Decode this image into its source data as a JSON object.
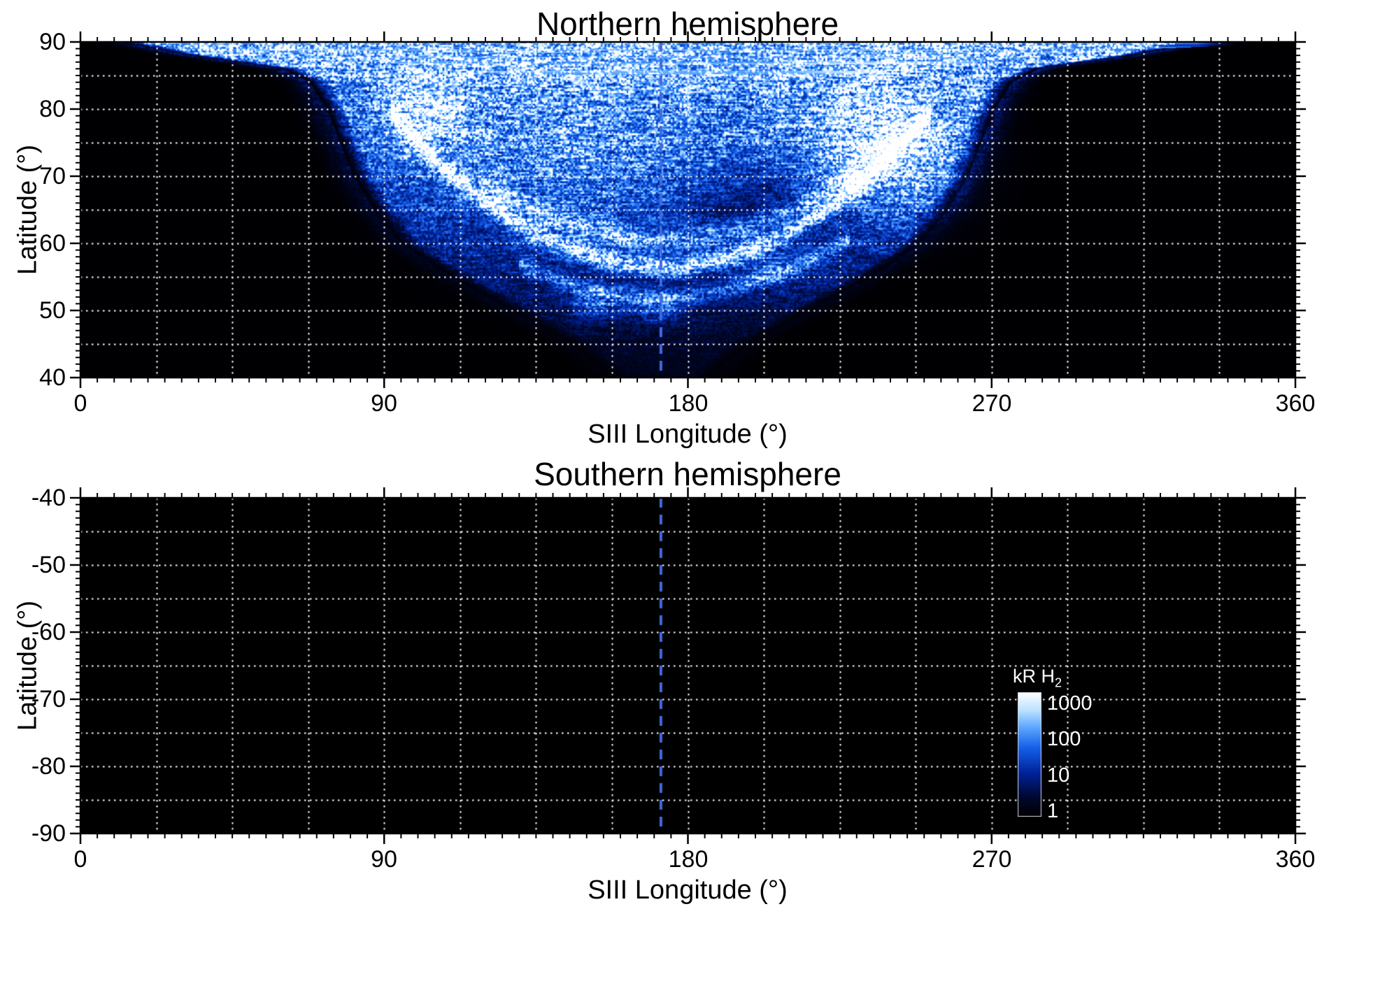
{
  "chart_data": {
    "type": "heatmap",
    "panels": [
      {
        "id": "north",
        "title": "Northern hemisphere",
        "xlabel": "SIII Longitude (°)",
        "ylabel": "Latitude (°)",
        "xlim": [
          0,
          360
        ],
        "ylim": [
          40,
          90
        ],
        "xticks": [
          0,
          90,
          180,
          270,
          360
        ],
        "yticks": [
          90,
          80,
          70,
          60,
          50,
          40
        ],
        "x_minor_step": 5,
        "y_minor_step": 1,
        "grid": {
          "lon_step": 22.5,
          "lat_step": 5,
          "style": "dotted",
          "color": "#ffffff"
        },
        "meridian_line": {
          "lon": 172,
          "style": "dashed",
          "color": "#3f6ae0"
        },
        "background": "#000000",
        "has_emission": true
      },
      {
        "id": "south",
        "title": "Southern hemisphere",
        "xlabel": "SIII Longitude (°)",
        "ylabel": "Latitude (°)",
        "xlim": [
          0,
          360
        ],
        "ylim": [
          -90,
          -40
        ],
        "xticks": [
          0,
          90,
          180,
          270,
          360
        ],
        "yticks": [
          -40,
          -50,
          -60,
          -70,
          -80,
          -90
        ],
        "x_minor_step": 5,
        "y_minor_step": 1,
        "grid": {
          "lon_step": 22.5,
          "lat_step": 5,
          "style": "dotted",
          "color": "#ffffff"
        },
        "meridian_line": {
          "lon": 172,
          "style": "dashed",
          "color": "#3f6ae0"
        },
        "background": "#000000",
        "has_emission": false
      }
    ],
    "colorbar": {
      "label": "kR H",
      "label_sub": "2",
      "ticks": [
        1000,
        100,
        10,
        1
      ],
      "log_range": [
        0.7,
        2000
      ],
      "stops": [
        [
          0.0,
          "#000003"
        ],
        [
          0.15,
          "#00072e"
        ],
        [
          0.35,
          "#00239a"
        ],
        [
          0.55,
          "#155fe8"
        ],
        [
          0.72,
          "#5ea8ff"
        ],
        [
          0.85,
          "#b8e0ff"
        ],
        [
          1.0,
          "#ffffff"
        ]
      ]
    },
    "emission_model": {
      "description": "Northern auroral H2 emission: funnel-shaped region centred near SIII lon 172, bright polar band above lat ~84 spanning lon ~15-335, narrow main oval arcs dipping to lat ~56 near lon 170, bright active region near lon 238 lat 74, speckled faint emission down to lat 40 between lon ~145-200.",
      "center_lon": 172,
      "halfwidth_by_lat": [
        [
          40,
          14
        ],
        [
          45,
          26
        ],
        [
          50,
          44
        ],
        [
          55,
          62
        ],
        [
          60,
          77
        ],
        [
          65,
          85
        ],
        [
          70,
          91
        ],
        [
          75,
          95
        ],
        [
          80,
          99
        ],
        [
          84,
          104
        ],
        [
          86,
          112
        ],
        [
          88,
          140
        ],
        [
          90,
          160
        ]
      ],
      "base_by_lat": [
        [
          40,
          0.1
        ],
        [
          46,
          0.18
        ],
        [
          52,
          0.28
        ],
        [
          58,
          0.38
        ],
        [
          64,
          0.48
        ],
        [
          70,
          0.6
        ],
        [
          76,
          0.72
        ],
        [
          82,
          0.82
        ],
        [
          86,
          0.92
        ],
        [
          90,
          0.97
        ]
      ],
      "edge_softness_deg": 6,
      "arcs": [
        {
          "lon_range": [
            92,
            252
          ],
          "lat_min": 56.5,
          "curvature": 0.0036,
          "sigma": 1.4,
          "gain": 0.65
        },
        {
          "lon_range": [
            118,
            242
          ],
          "lat_min": 60.5,
          "curvature": 0.003,
          "sigma": 1.8,
          "gain": 0.4
        },
        {
          "lon_range": [
            130,
            228
          ],
          "lat_min": 52.0,
          "curvature": 0.0028,
          "sigma": 1.2,
          "gain": 0.35
        }
      ],
      "blobs": [
        {
          "lon": 238,
          "lat": 74,
          "sigma_lon": 15,
          "sigma_lat": 6.5,
          "gain": 0.55
        },
        {
          "lon": 104,
          "lat": 79,
          "sigma_lon": 9,
          "sigma_lat": 5,
          "gain": 0.35
        },
        {
          "lon": 150,
          "lat": 70,
          "sigma_lon": 26,
          "sigma_lat": 8,
          "gain": 0.18
        },
        {
          "lon": 200,
          "lat": 66,
          "sigma_lon": 16,
          "sigma_lat": 5,
          "gain": -0.22
        },
        {
          "lon": 152,
          "lat": 51,
          "sigma_lon": 5,
          "sigma_lat": 1.6,
          "gain": 0.4
        },
        {
          "lon": 171,
          "lat": 50.5,
          "sigma_lon": 6,
          "sigma_lat": 1.5,
          "gain": 0.38
        },
        {
          "lon": 205,
          "lat": 57,
          "sigma_lon": 10,
          "sigma_lat": 2.5,
          "gain": 0.25
        }
      ],
      "polar_band": {
        "lon_center": 178,
        "lon_sigma": 105,
        "depth_max": 6.2,
        "lon_halfspan": 165,
        "taper_deg": 12,
        "gain": 0.97
      }
    }
  }
}
